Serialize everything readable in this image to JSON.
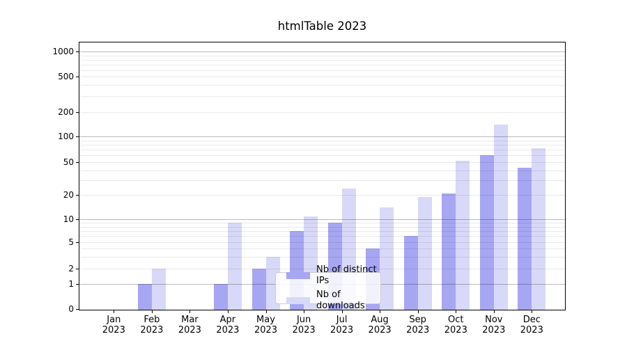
{
  "chart_data": {
    "type": "bar",
    "title": "htmlTable 2023",
    "categories": [
      "Jan",
      "Feb",
      "Mar",
      "Apr",
      "May",
      "Jun",
      "Jul",
      "Aug",
      "Sep",
      "Oct",
      "Nov",
      "Dec"
    ],
    "year_label": "2023",
    "series": [
      {
        "name": "Nb of distinct IPs",
        "color": "#a6a6f2",
        "values": [
          0,
          1,
          0,
          1,
          2,
          7,
          9,
          4,
          6,
          21,
          60,
          43
        ]
      },
      {
        "name": "Nb of downloads",
        "color": "#d8d8f8",
        "values": [
          0,
          2,
          0,
          9,
          3,
          11,
          24,
          14,
          19,
          52,
          140,
          73
        ]
      }
    ],
    "y_axis": {
      "ticks": [
        0,
        1,
        2,
        5,
        10,
        20,
        50,
        100,
        200,
        500,
        1000
      ],
      "scale": "log-like with zero baseline",
      "ylim": [
        0,
        1300
      ]
    },
    "xlabel": "",
    "ylabel": "",
    "grid": {
      "horizontal": true,
      "minor_lines": true
    },
    "legend": {
      "position": "lower center"
    },
    "colors": {
      "background": "#ffffff",
      "axis": "#000000",
      "grid_major": "#bdbdbd",
      "grid_minor": "#ebebeb",
      "legend_border": "#cccccc"
    }
  }
}
